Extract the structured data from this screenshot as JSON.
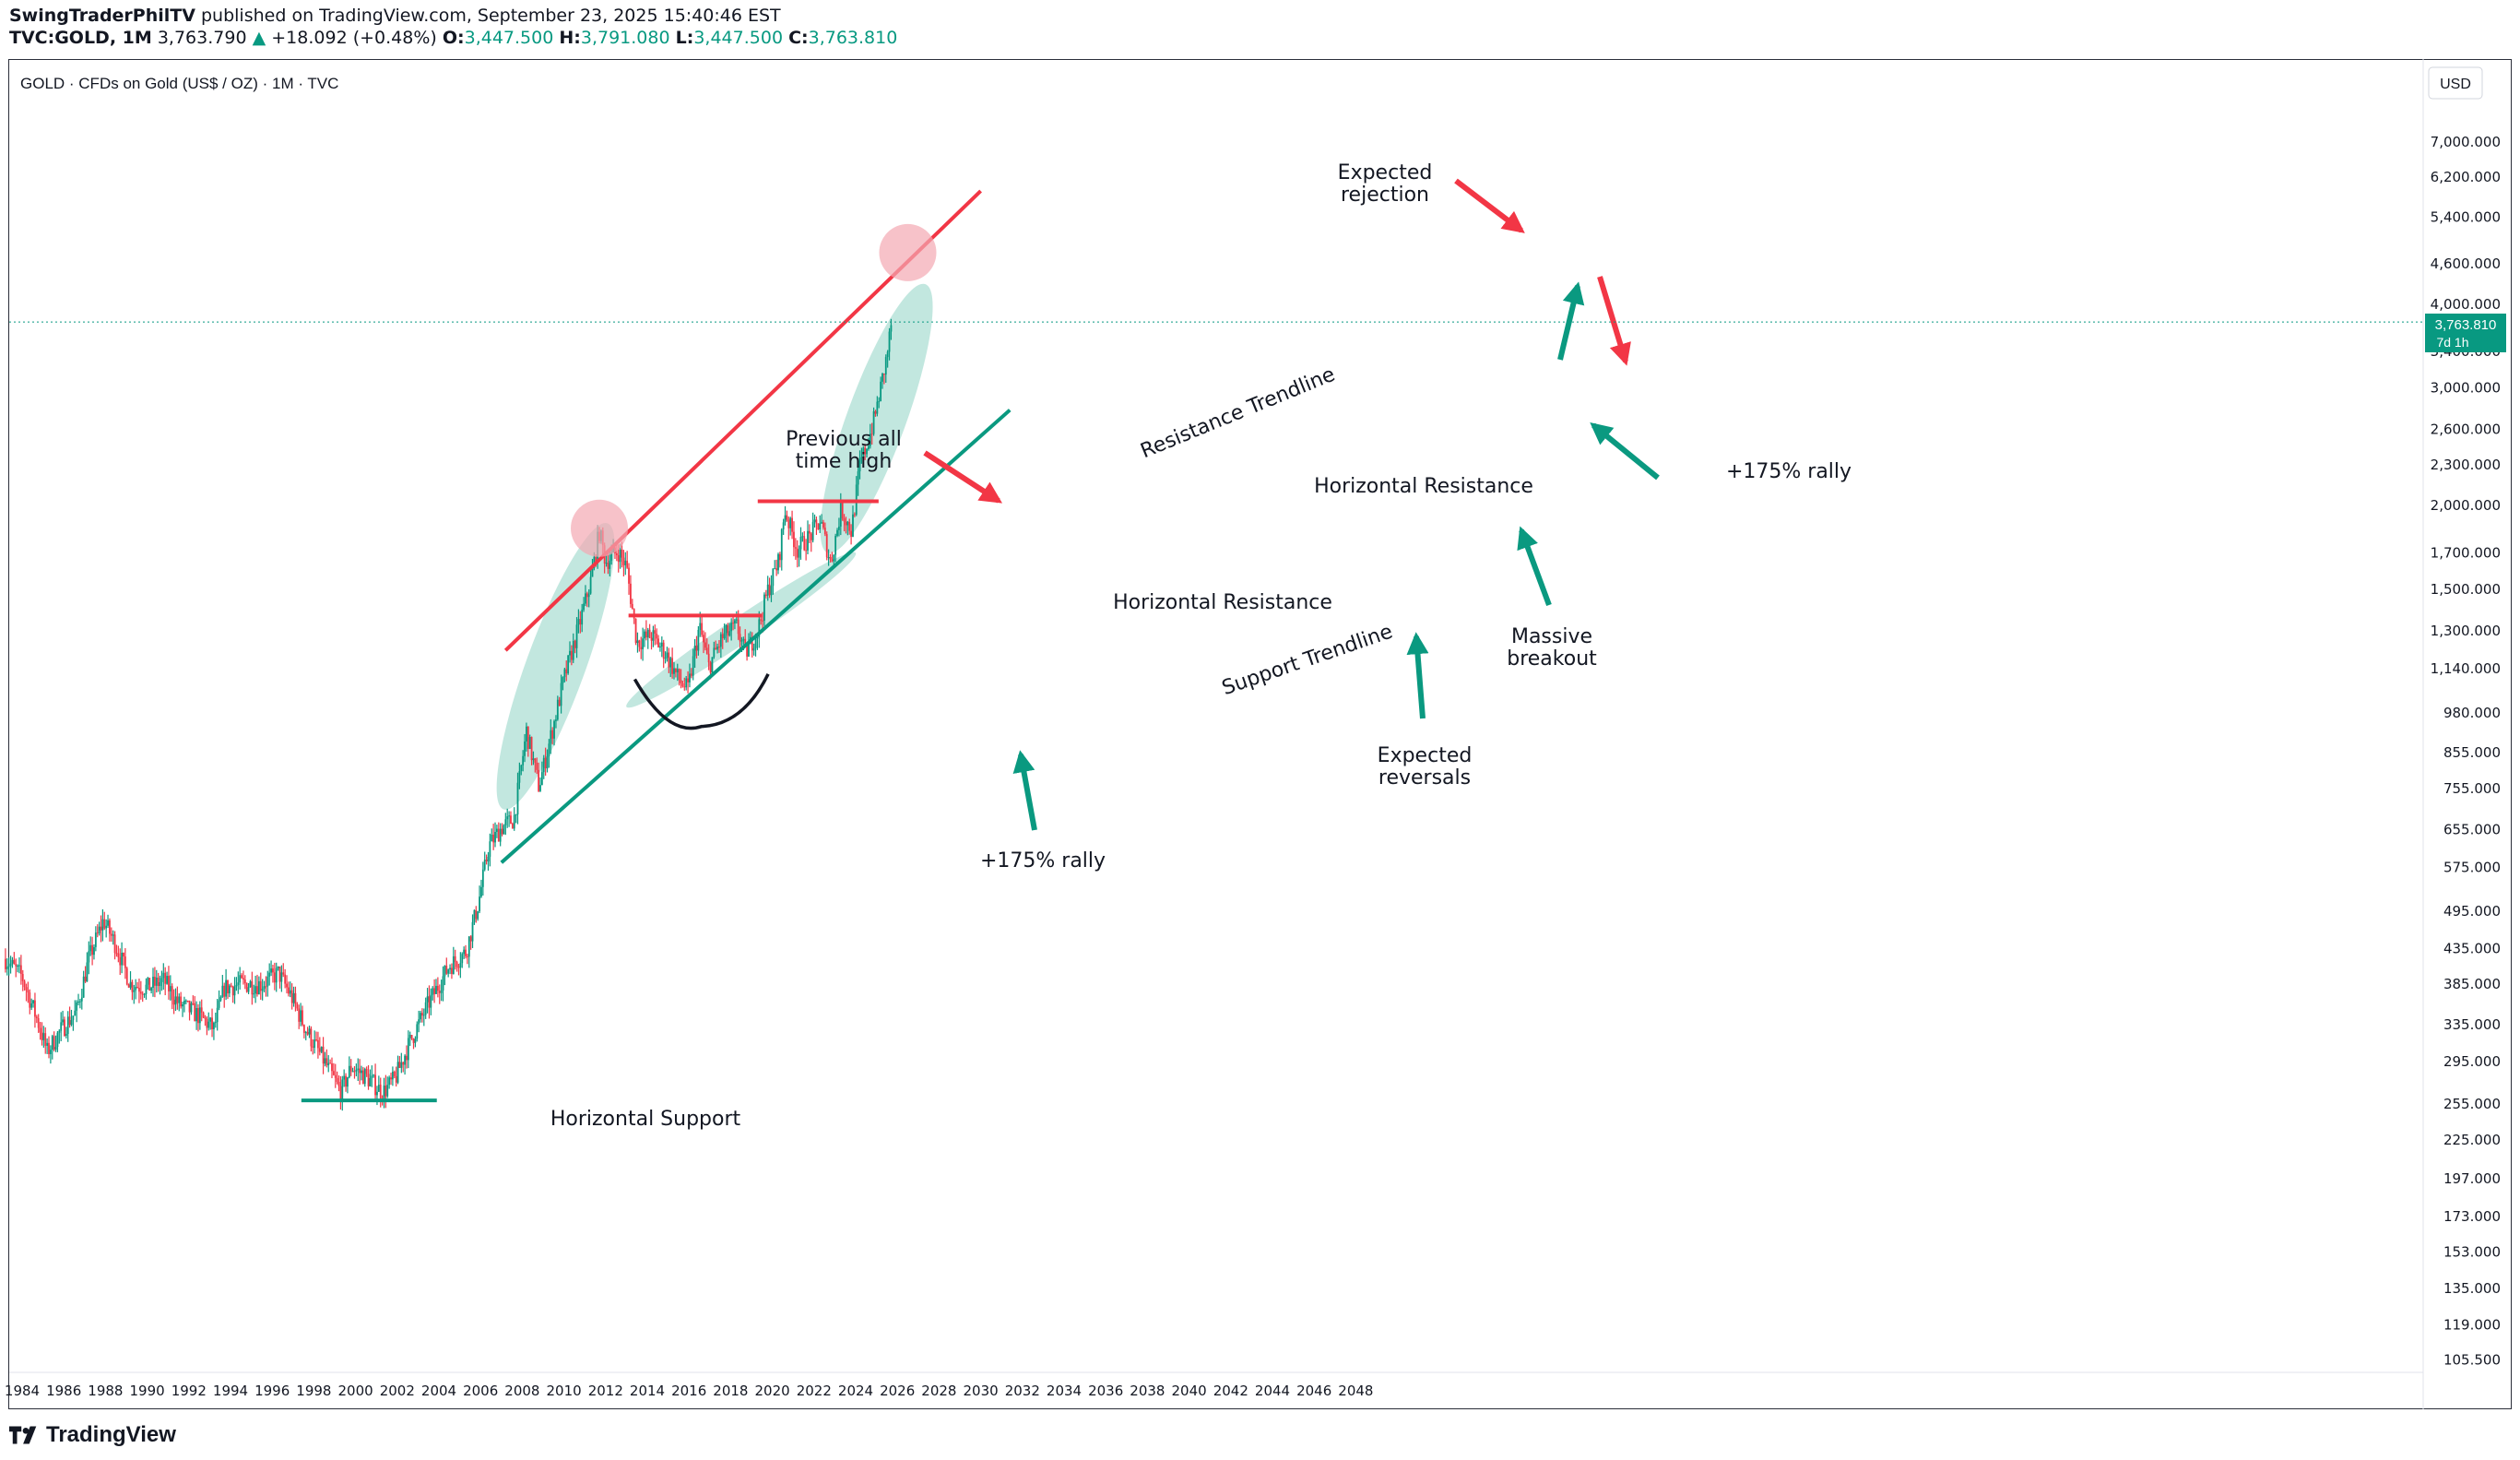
{
  "header": {
    "author": "SwingTraderPhilTV",
    "published_text": " published on TradingView.com, September 23, 2025 15:40:46 EST",
    "symbol": "TVC:GOLD, 1M",
    "last": "3,763.790",
    "change": "+18.092 (+0.48%)",
    "open_label": "O:",
    "open": "3,447.500",
    "high_label": "H:",
    "high": "3,791.080",
    "low_label": "L:",
    "low": "3,447.500",
    "close_label": "C:",
    "close": "3,763.810"
  },
  "legend": {
    "title": "GOLD · CFDs on Gold (US$ / OZ) · 1M · TVC"
  },
  "price_scale": {
    "currency": "USD",
    "current_price": "3,763.810",
    "countdown": "7d 1h"
  },
  "footer": {
    "brand": "TradingView"
  },
  "colors": {
    "bull": "#089981",
    "bear": "#f23645",
    "resistance": "#f23645",
    "support": "#0a9980",
    "teal_fill": "#8fd3c4",
    "pink_marker": "#f4a8b2"
  },
  "chart_data": {
    "type": "candlestick",
    "title": "GOLD · CFDs on Gold (US$ / OZ) · 1M · TVC",
    "scale": "log",
    "ylim": [
      100,
      8200
    ],
    "xlim": [
      1983.2,
      2049.0
    ],
    "x_ticks": [
      "1984",
      "1986",
      "1988",
      "1990",
      "1992",
      "1994",
      "1996",
      "1998",
      "2000",
      "2002",
      "2004",
      "2006",
      "2008",
      "2010",
      "2012",
      "2014",
      "2016",
      "2018",
      "2020",
      "2022",
      "2024",
      "2026",
      "2028",
      "2030",
      "2032",
      "2034",
      "2036",
      "2038",
      "2040",
      "2042",
      "2044",
      "2046",
      "2048"
    ],
    "y_ticks": [
      "7,000.000",
      "6,200.000",
      "5,400.000",
      "4,600.000",
      "4,000.000",
      "3,400.000",
      "3,000.000",
      "2,600.000",
      "2,300.000",
      "2,000.000",
      "1,700.000",
      "1,500.000",
      "1,300.000",
      "1,140.000",
      "980.000",
      "855.000",
      "755.000",
      "655.000",
      "575.000",
      "495.000",
      "435.000",
      "385.000",
      "335.000",
      "295.000",
      "255.000",
      "225.000",
      "197.000",
      "173.000",
      "153.000",
      "135.000",
      "119.000",
      "105.500"
    ],
    "price_path": [
      [
        1983.2,
        420
      ],
      [
        1984.0,
        395
      ],
      [
        1984.8,
        335
      ],
      [
        1985.2,
        305
      ],
      [
        1985.9,
        330
      ],
      [
        1986.6,
        350
      ],
      [
        1987.2,
        420
      ],
      [
        1987.9,
        480
      ],
      [
        1988.5,
        440
      ],
      [
        1989.2,
        385
      ],
      [
        1990.0,
        380
      ],
      [
        1990.8,
        390
      ],
      [
        1991.5,
        360
      ],
      [
        1992.5,
        345
      ],
      [
        1993.2,
        330
      ],
      [
        1993.7,
        380
      ],
      [
        1994.5,
        385
      ],
      [
        1995.5,
        385
      ],
      [
        1996.3,
        400
      ],
      [
        1996.9,
        370
      ],
      [
        1997.6,
        330
      ],
      [
        1998.5,
        295
      ],
      [
        1999.3,
        265
      ],
      [
        1999.8,
        290
      ],
      [
        2000.5,
        280
      ],
      [
        2001.3,
        265
      ],
      [
        2001.9,
        278
      ],
      [
        2002.6,
        315
      ],
      [
        2003.5,
        360
      ],
      [
        2004.5,
        410
      ],
      [
        2005.3,
        430
      ],
      [
        2005.9,
        510
      ],
      [
        2006.4,
        620
      ],
      [
        2007.0,
        660
      ],
      [
        2007.6,
        680
      ],
      [
        2008.2,
        920
      ],
      [
        2008.8,
        760
      ],
      [
        2009.5,
        940
      ],
      [
        2010.0,
        1100
      ],
      [
        2010.8,
        1350
      ],
      [
        2011.3,
        1550
      ],
      [
        2011.7,
        1830
      ],
      [
        2012.0,
        1650
      ],
      [
        2012.6,
        1710
      ],
      [
        2013.0,
        1620
      ],
      [
        2013.5,
        1250
      ],
      [
        2014.2,
        1280
      ],
      [
        2014.9,
        1200
      ],
      [
        2015.5,
        1100
      ],
      [
        2015.95,
        1060
      ],
      [
        2016.5,
        1320
      ],
      [
        2016.95,
        1150
      ],
      [
        2017.6,
        1270
      ],
      [
        2018.3,
        1320
      ],
      [
        2018.7,
        1200
      ],
      [
        2019.3,
        1300
      ],
      [
        2019.8,
        1500
      ],
      [
        2020.3,
        1650
      ],
      [
        2020.6,
        1970
      ],
      [
        2021.2,
        1720
      ],
      [
        2021.8,
        1800
      ],
      [
        2022.3,
        1900
      ],
      [
        2022.8,
        1640
      ],
      [
        2023.3,
        1980
      ],
      [
        2023.8,
        1830
      ],
      [
        2024.2,
        2300
      ],
      [
        2024.6,
        2500
      ],
      [
        2024.9,
        2700
      ],
      [
        2025.2,
        3000
      ],
      [
        2025.5,
        3350
      ],
      [
        2025.72,
        3764
      ]
    ],
    "trendlines": [
      {
        "name": "Resistance Trendline",
        "type": "resistance",
        "from": [
          2007.2,
          1215
        ],
        "to": [
          2030.0,
          5910
        ]
      },
      {
        "name": "Support Trendline",
        "type": "support",
        "from": [
          2007.0,
          585
        ],
        "to": [
          2031.4,
          2780
        ]
      }
    ],
    "horizontal_lines": [
      {
        "name": "Horizontal Support",
        "type": "support",
        "value": 258,
        "from": 1997.4,
        "to": 2003.9
      },
      {
        "name": "Horizontal Resistance",
        "type": "resistance",
        "value": 1370,
        "from": 2013.1,
        "to": 2019.5
      },
      {
        "name": "Horizontal Resistance",
        "type": "resistance",
        "value": 2030,
        "from": 2019.3,
        "to": 2025.1
      }
    ],
    "annotations": [
      {
        "text": "Horizontal Support",
        "type": "support"
      },
      {
        "text": "Horizontal Resistance",
        "type": "resistance"
      },
      {
        "text": "Horizontal Resistance",
        "type": "resistance"
      },
      {
        "text": "Resistance Trendline",
        "type": "resistance"
      },
      {
        "text": "Support Trendline",
        "type": "support"
      },
      {
        "text": "Previous all time high",
        "type": "note"
      },
      {
        "text": "Expected rejection",
        "type": "note"
      },
      {
        "text": "+175% rally",
        "type": "note"
      },
      {
        "text": "+175% rally",
        "type": "note"
      },
      {
        "text": "Expected reversals",
        "type": "note"
      },
      {
        "text": "Massive breakout",
        "type": "note"
      }
    ]
  }
}
